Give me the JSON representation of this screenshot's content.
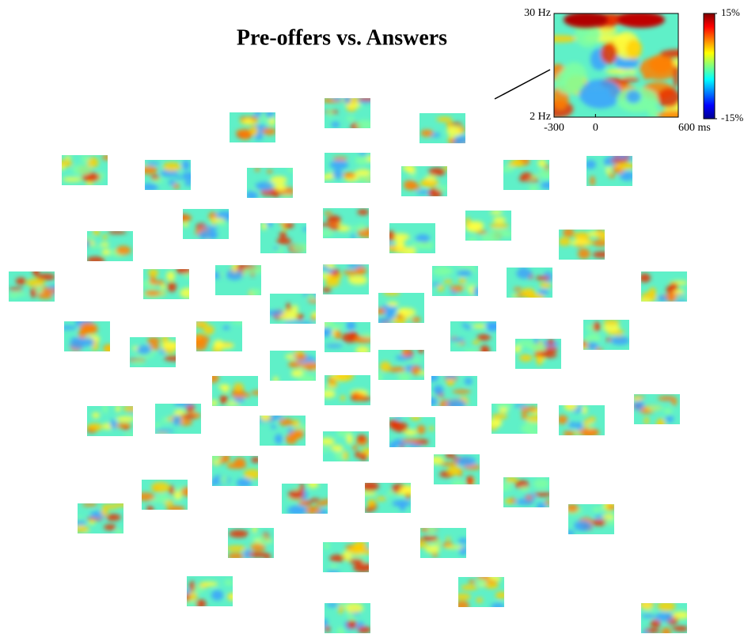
{
  "chart_data": {
    "type": "heatmap-grid",
    "title": "Pre-offers vs. Answers",
    "inset": {
      "xlim": [
        -300,
        600
      ],
      "xticks": [
        -300,
        0,
        {
          "value": 600,
          "label": "600 ms"
        }
      ],
      "ylim": [
        2,
        30
      ],
      "yticks": [
        {
          "value": 2,
          "label": "2 Hz"
        },
        {
          "value": 30,
          "label": "30 Hz"
        }
      ]
    },
    "colorbar": {
      "colormap": "jet",
      "lim": [
        -15,
        15
      ],
      "ticks": [
        {
          "value": -15,
          "label": "-15%"
        },
        {
          "value": 15,
          "label": "15%"
        }
      ]
    }
  }
}
